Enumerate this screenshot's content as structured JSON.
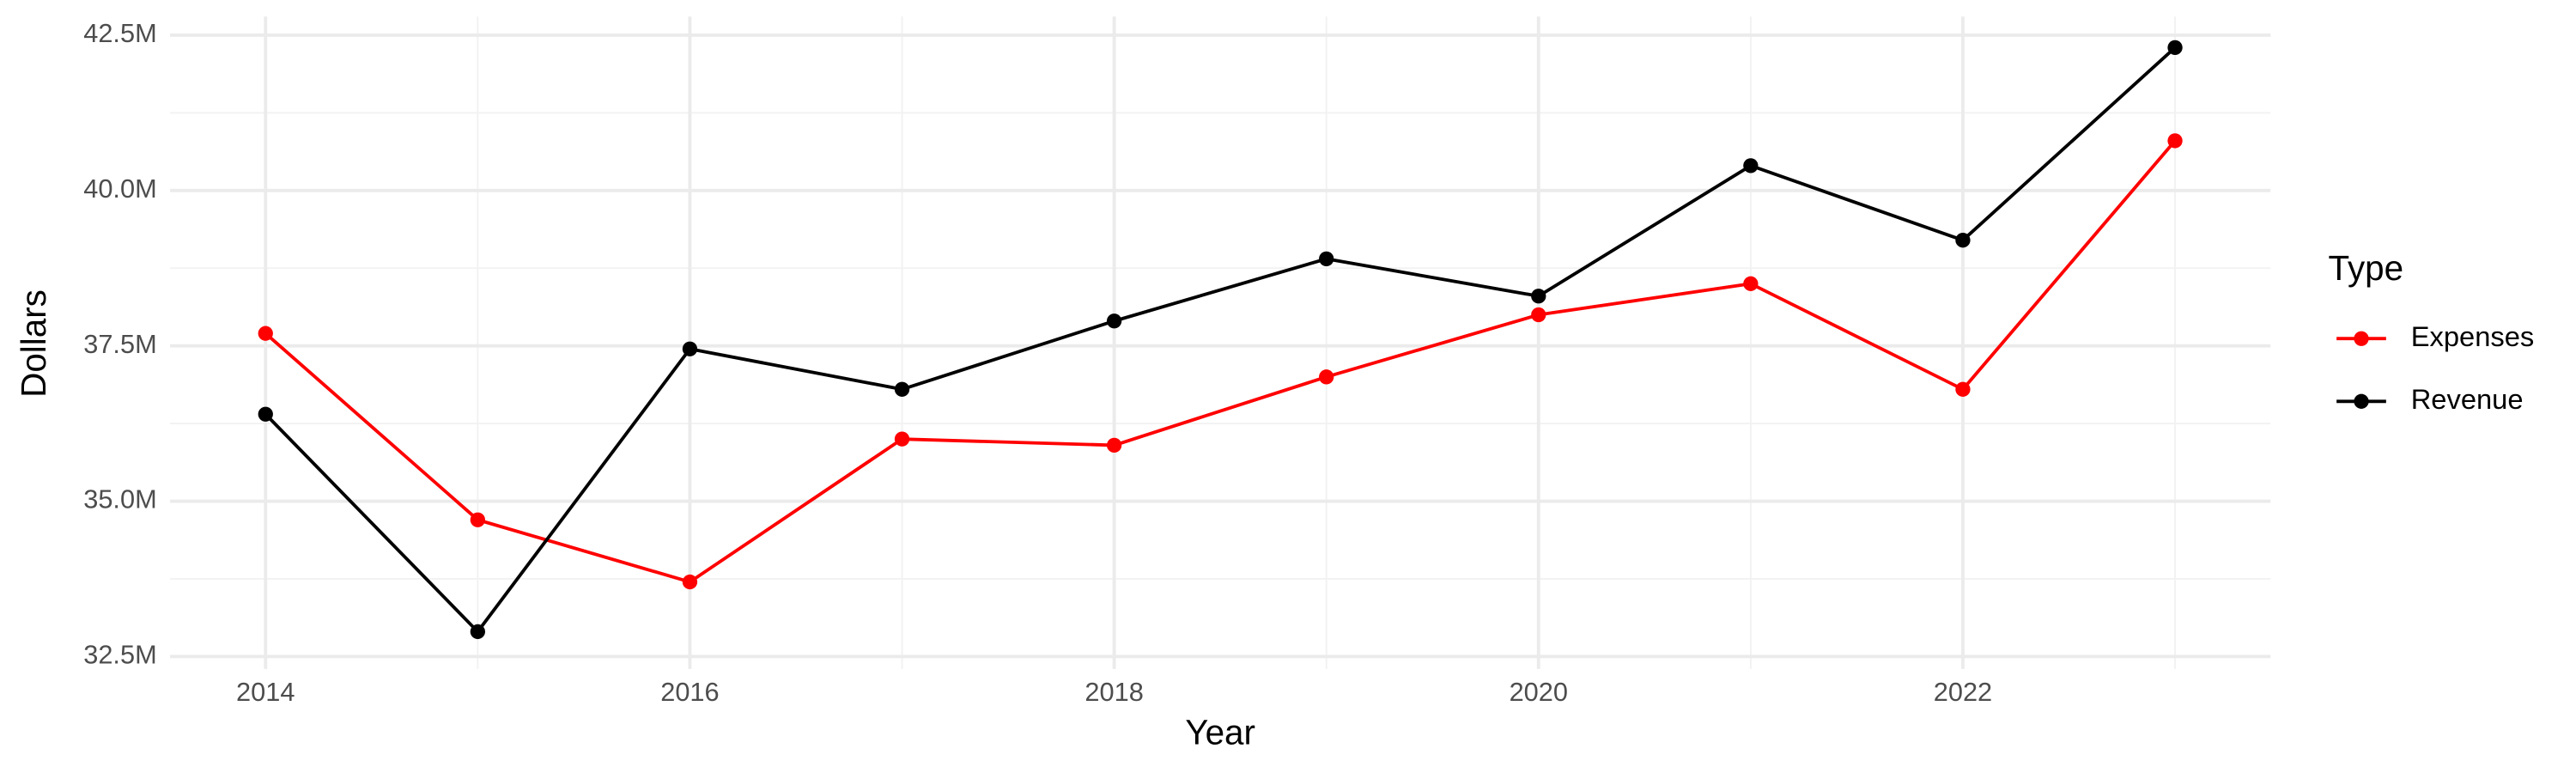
{
  "chart_data": {
    "type": "line",
    "x": [
      2014,
      2015,
      2016,
      2017,
      2018,
      2019,
      2020,
      2021,
      2022,
      2023
    ],
    "series": [
      {
        "name": "Expenses",
        "color": "#ff0000",
        "values": [
          37700000,
          34700000,
          33700000,
          36000000,
          35900000,
          37000000,
          38000000,
          38500000,
          36800000,
          40800000
        ]
      },
      {
        "name": "Revenue",
        "color": "#000000",
        "values": [
          36400000,
          32900000,
          37450000,
          36800000,
          37900000,
          38900000,
          38300000,
          40400000,
          39200000,
          42300000
        ]
      }
    ],
    "x_label": "Year",
    "y_label": "Dollars",
    "legend_title": "Type",
    "xlim": [
      2013.55,
      2023.45
    ],
    "xticks": [
      2014,
      2016,
      2018,
      2020,
      2022
    ],
    "ylim": [
      32300000,
      42800000
    ],
    "yticks": [
      {
        "value": 32500000,
        "label": "32.5M"
      },
      {
        "value": 35000000,
        "label": "35.0M"
      },
      {
        "value": 37500000,
        "label": "37.5M"
      },
      {
        "value": 40000000,
        "label": "40.0M"
      },
      {
        "value": 42500000,
        "label": "42.5M"
      }
    ],
    "grid": true,
    "legend": "right"
  }
}
